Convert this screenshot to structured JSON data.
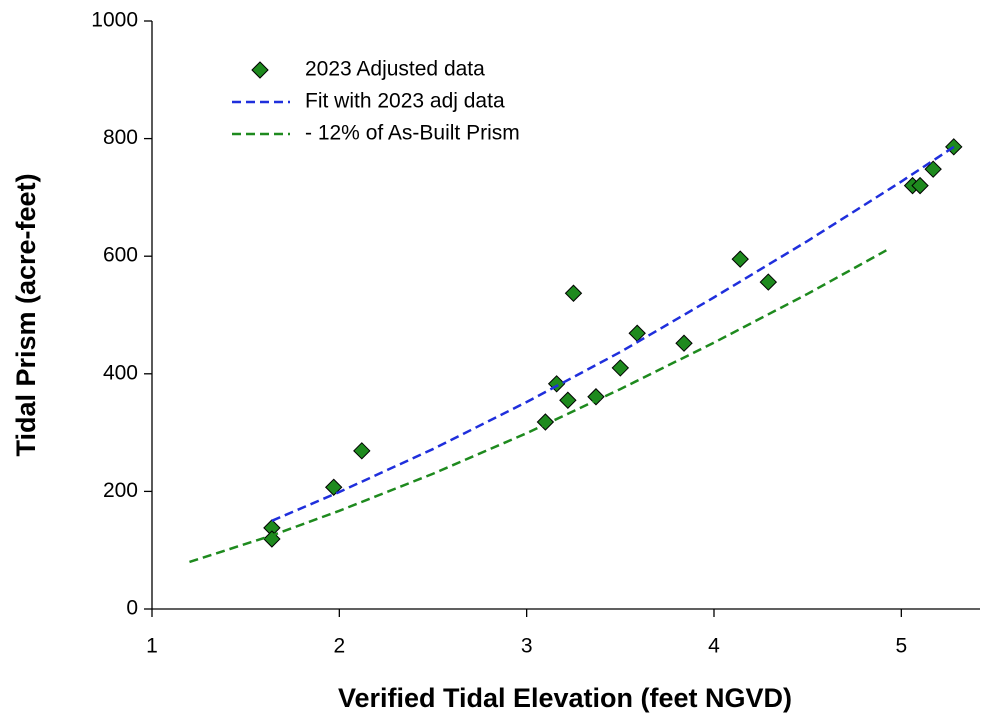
{
  "chart_data": {
    "type": "scatter",
    "x_label": "Verified Tidal Elevation (feet NGVD)",
    "y_label": "Tidal Prism (acre-feet)",
    "xlim": [
      1,
      5.42
    ],
    "xticks": [
      1,
      2,
      3,
      4,
      5
    ],
    "ylim": [
      0,
      1000
    ],
    "yticks": [
      0,
      200,
      400,
      600,
      800,
      1000
    ],
    "legend": "top-left",
    "series": [
      {
        "name": "2023 Adjusted data",
        "color": "#1e8a1e",
        "style": "marker",
        "x": [
          1.64,
          1.64,
          1.97,
          2.12,
          3.1,
          3.16,
          3.22,
          3.25,
          3.37,
          3.5,
          3.59,
          3.84,
          4.14,
          4.29,
          5.06,
          5.1,
          5.17,
          5.28
        ],
        "values": [
          138,
          119,
          207,
          269,
          318,
          383,
          355,
          537,
          361,
          410,
          469,
          452,
          595,
          556,
          720,
          720,
          748,
          786
        ]
      },
      {
        "name": "Fit with 2023 adj data",
        "color": "#1f2fdc",
        "style": "dashed",
        "x": [
          1.64,
          2,
          2.5,
          3,
          3.5,
          4,
          4.5,
          5,
          5.3
        ],
        "values": [
          150,
          199,
          272,
          352,
          437,
          530,
          626,
          727,
          790
        ]
      },
      {
        "name": "- 12% of As-Built Prism",
        "color": "#1e8a1e",
        "style": "dashed",
        "x": [
          1.2,
          1.64,
          2,
          2.5,
          3,
          3.5,
          4,
          4.5,
          4.92
        ],
        "values": [
          80,
          125,
          167,
          230,
          299,
          374,
          453,
          536,
          610
        ]
      }
    ]
  }
}
